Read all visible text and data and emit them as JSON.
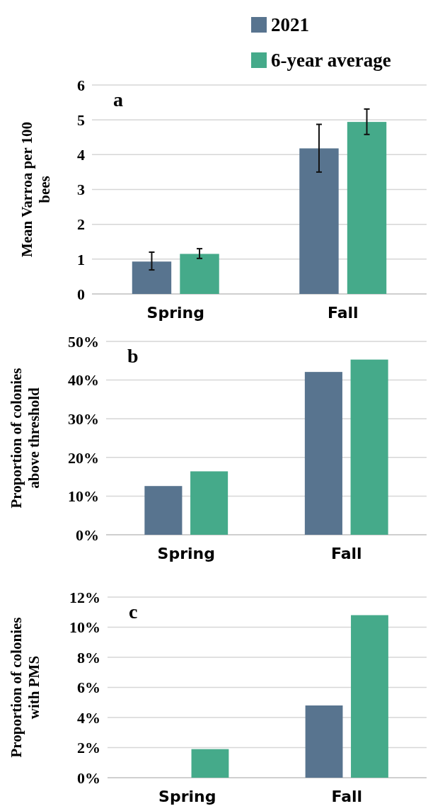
{
  "chart_data": [
    {
      "type": "bar",
      "title": "a",
      "ylabel": "Mean Varroa per 100 bees",
      "categories": [
        "Spring",
        "Fall"
      ],
      "ylim": [
        0,
        6
      ],
      "yticks": [
        0,
        1,
        2,
        3,
        4,
        5,
        6
      ],
      "grid": "y",
      "legend": "top right",
      "series": [
        {
          "name": "2021",
          "color": "#58748f",
          "values": [
            0.93,
            4.18
          ],
          "errors": [
            [
              0.69,
              1.2
            ],
            [
              3.5,
              4.87
            ]
          ]
        },
        {
          "name": "6-year average",
          "color": "#45aa8a",
          "values": [
            1.15,
            4.94
          ],
          "errors": [
            [
              1.02,
              1.3
            ],
            [
              4.58,
              5.31
            ]
          ]
        }
      ]
    },
    {
      "type": "bar",
      "title": "b",
      "ylabel": "Proportion of colonies above threshold",
      "categories": [
        "Spring",
        "Fall"
      ],
      "ylim": [
        0,
        50
      ],
      "yticks": [
        {
          "value": 0,
          "label": "0%"
        },
        {
          "value": 10,
          "label": "10%"
        },
        {
          "value": 20,
          "label": "20%"
        },
        {
          "value": 30,
          "label": "30%"
        },
        {
          "value": 40,
          "label": "40%"
        },
        {
          "value": 50,
          "label": "50%"
        }
      ],
      "grid": "y",
      "series": [
        {
          "color": "#58748f",
          "values": [
            12.6,
            42.1
          ]
        },
        {
          "color": "#45aa8a",
          "values": [
            16.4,
            45.3
          ]
        }
      ]
    },
    {
      "type": "bar",
      "title": "c",
      "ylabel": "Proportion of colonies with PMS",
      "categories": [
        "Spring",
        "Fall"
      ],
      "ylim": [
        0,
        12
      ],
      "yticks": [
        {
          "value": 0,
          "label": "0%"
        },
        {
          "value": 2,
          "label": "2%"
        },
        {
          "value": 4,
          "label": "4%"
        },
        {
          "value": 6,
          "label": "6%"
        },
        {
          "value": 8,
          "label": "8%"
        },
        {
          "value": 10,
          "label": "10%"
        },
        {
          "value": 12,
          "label": "12%"
        }
      ],
      "grid": "y",
      "series": [
        {
          "color": "#58748f",
          "values": [
            0,
            4.8
          ]
        },
        {
          "color": "#45aa8a",
          "values": [
            1.9,
            10.8
          ]
        }
      ]
    }
  ]
}
